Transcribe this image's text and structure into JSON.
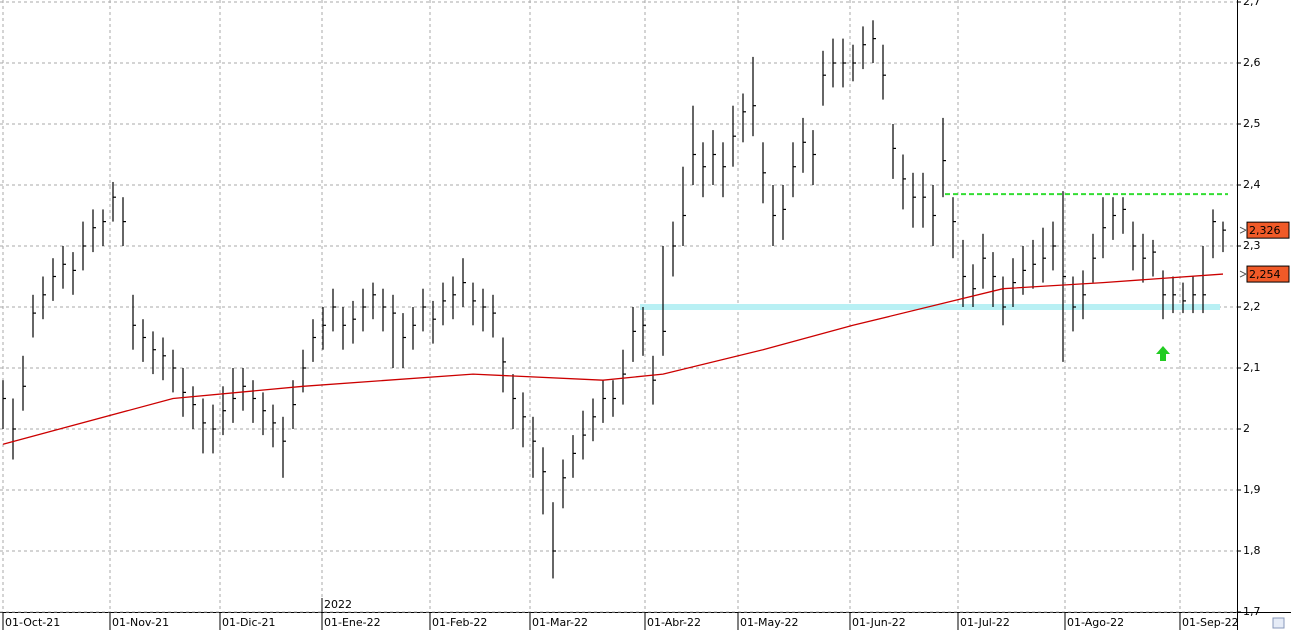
{
  "chart_data": {
    "type": "ohlc",
    "x": [
      0,
      1,
      2,
      3,
      4,
      5,
      6,
      7,
      8,
      9,
      10,
      11,
      12,
      13,
      14,
      15,
      16,
      17,
      18,
      19,
      20,
      21,
      22,
      23,
      24,
      25,
      26,
      27,
      28,
      29,
      30,
      31,
      32,
      33,
      34,
      35,
      36,
      37,
      38,
      39,
      40,
      41,
      42,
      43,
      44,
      45,
      46,
      47,
      48,
      49,
      50,
      51,
      52,
      53,
      54,
      55,
      56,
      57,
      58,
      59,
      60,
      61,
      62,
      63,
      64,
      65,
      66,
      67,
      68,
      69,
      70,
      71,
      72,
      73,
      74,
      75,
      76,
      77,
      78,
      79,
      80,
      81,
      82,
      83,
      84,
      85,
      86,
      87,
      88,
      89,
      90,
      91,
      92,
      93,
      94,
      95,
      96,
      97,
      98,
      99,
      100,
      101,
      102,
      103,
      104,
      105,
      106,
      107,
      108,
      109,
      110,
      111,
      112,
      113,
      114,
      115,
      116,
      117,
      118,
      119,
      120,
      121,
      122
    ],
    "high": [
      2.08,
      2.05,
      2.12,
      2.22,
      2.25,
      2.28,
      2.3,
      2.29,
      2.34,
      2.36,
      2.36,
      2.405,
      2.38,
      2.22,
      2.18,
      2.16,
      2.15,
      2.13,
      2.1,
      2.07,
      2.05,
      2.04,
      2.07,
      2.1,
      2.1,
      2.08,
      2.06,
      2.04,
      2.02,
      2.08,
      2.13,
      2.18,
      2.2,
      2.23,
      2.2,
      2.21,
      2.23,
      2.24,
      2.23,
      2.22,
      2.19,
      2.2,
      2.23,
      2.21,
      2.24,
      2.25,
      2.28,
      2.24,
      2.23,
      2.22,
      2.15,
      2.09,
      2.06,
      2.02,
      1.97,
      1.88,
      1.95,
      1.99,
      2.03,
      2.05,
      2.08,
      2.08,
      2.13,
      2.2,
      2.2,
      2.12,
      2.3,
      2.34,
      2.43,
      2.53,
      2.47,
      2.49,
      2.47,
      2.53,
      2.55,
      2.61,
      2.47,
      2.4,
      2.4,
      2.47,
      2.51,
      2.49,
      2.62,
      2.64,
      2.64,
      2.63,
      2.66,
      2.67,
      2.63,
      2.5,
      2.45,
      2.42,
      2.42,
      2.4,
      2.51,
      2.38,
      2.31,
      2.27,
      2.32,
      2.29,
      2.25,
      2.28,
      2.3,
      2.31,
      2.33,
      2.34,
      2.39,
      2.25,
      2.26,
      2.32,
      2.38,
      2.38,
      2.38,
      2.34,
      2.32,
      2.31,
      2.26,
      2.25,
      2.24,
      2.25,
      2.3,
      2.36,
      2.34
    ],
    "low": [
      2.0,
      1.95,
      2.03,
      2.15,
      2.18,
      2.21,
      2.23,
      2.22,
      2.26,
      2.29,
      2.3,
      2.34,
      2.3,
      2.13,
      2.11,
      2.09,
      2.08,
      2.06,
      2.02,
      2.0,
      1.96,
      1.96,
      1.99,
      2.01,
      2.03,
      2.01,
      1.99,
      1.97,
      1.92,
      2.0,
      2.06,
      2.11,
      2.13,
      2.16,
      2.13,
      2.14,
      2.16,
      2.18,
      2.16,
      2.1,
      2.1,
      2.13,
      2.16,
      2.14,
      2.17,
      2.18,
      2.2,
      2.17,
      2.16,
      2.15,
      2.06,
      2.0,
      1.97,
      1.92,
      1.86,
      1.755,
      1.87,
      1.92,
      1.95,
      1.98,
      2.01,
      2.02,
      2.04,
      2.11,
      2.12,
      2.04,
      2.12,
      2.25,
      2.3,
      2.4,
      2.38,
      2.4,
      2.38,
      2.43,
      2.47,
      2.48,
      2.37,
      2.3,
      2.31,
      2.38,
      2.42,
      2.4,
      2.53,
      2.56,
      2.56,
      2.57,
      2.59,
      2.6,
      2.54,
      2.41,
      2.36,
      2.33,
      2.33,
      2.3,
      2.38,
      2.28,
      2.2,
      2.2,
      2.23,
      2.2,
      2.17,
      2.2,
      2.22,
      2.23,
      2.24,
      2.26,
      2.11,
      2.16,
      2.18,
      2.24,
      2.28,
      2.31,
      2.32,
      2.26,
      2.24,
      2.25,
      2.18,
      2.19,
      2.19,
      2.19,
      2.19,
      2.28,
      2.29
    ],
    "close": [
      2.05,
      2.0,
      2.07,
      2.19,
      2.22,
      2.25,
      2.27,
      2.26,
      2.3,
      2.33,
      2.34,
      2.38,
      2.34,
      2.17,
      2.15,
      2.13,
      2.12,
      2.1,
      2.06,
      2.04,
      2.01,
      2.0,
      2.03,
      2.05,
      2.07,
      2.05,
      2.03,
      2.01,
      1.98,
      2.04,
      2.1,
      2.15,
      2.17,
      2.2,
      2.17,
      2.18,
      2.2,
      2.22,
      2.2,
      2.19,
      2.15,
      2.17,
      2.2,
      2.18,
      2.21,
      2.22,
      2.24,
      2.21,
      2.2,
      2.19,
      2.11,
      2.05,
      2.02,
      1.98,
      1.93,
      1.8,
      1.92,
      1.96,
      1.99,
      2.02,
      2.05,
      2.05,
      2.09,
      2.16,
      2.17,
      2.08,
      2.16,
      2.3,
      2.35,
      2.45,
      2.43,
      2.45,
      2.43,
      2.48,
      2.52,
      2.53,
      2.42,
      2.35,
      2.36,
      2.43,
      2.47,
      2.45,
      2.58,
      2.6,
      2.6,
      2.6,
      2.63,
      2.64,
      2.58,
      2.46,
      2.41,
      2.38,
      2.38,
      2.35,
      2.44,
      2.34,
      2.25,
      2.23,
      2.28,
      2.25,
      2.2,
      2.24,
      2.26,
      2.27,
      2.28,
      2.3,
      2.25,
      2.2,
      2.22,
      2.28,
      2.33,
      2.35,
      2.36,
      2.3,
      2.28,
      2.29,
      2.22,
      2.22,
      2.21,
      2.22,
      2.22,
      2.34,
      2.326
    ],
    "color": "#000000",
    "moving_average": {
      "color": "#cc0000",
      "x": [
        0,
        17,
        30,
        47,
        60,
        66,
        76,
        85,
        95,
        100,
        110,
        122
      ],
      "values": [
        1.975,
        2.05,
        2.07,
        2.09,
        2.08,
        2.09,
        2.13,
        2.17,
        2.21,
        2.23,
        2.24,
        2.254
      ]
    },
    "resistance": {
      "color": "#33dd33",
      "value": 2.385,
      "x": [
        94.2,
        122.5
      ]
    },
    "support": {
      "color": "#b8f0f4",
      "value": 2.2,
      "x": [
        63.7,
        121.7
      ]
    },
    "price_labels": [
      {
        "value": 2.326,
        "label": "2,326"
      },
      {
        "value": 2.254,
        "label": "2,254"
      }
    ],
    "year_label": "2022",
    "xlim": [
      -0.3,
      123.4
    ],
    "xticks": [
      {
        "value": 0,
        "label": "01-Oct-21"
      },
      {
        "value": 10.7,
        "label": "01-Nov-21"
      },
      {
        "value": 21.7,
        "label": "01-Dic-21"
      },
      {
        "value": 31.9,
        "label": "01-Ene-22"
      },
      {
        "value": 42.7,
        "label": "01-Feb-22"
      },
      {
        "value": 52.7,
        "label": "01-Mar-22"
      },
      {
        "value": 64.2,
        "label": "01-Abr-22"
      },
      {
        "value": 73.5,
        "label": "01-May-22"
      },
      {
        "value": 84.7,
        "label": "01-Jun-22"
      },
      {
        "value": 95.5,
        "label": "01-Jul-22"
      },
      {
        "value": 106.2,
        "label": "01-Ago-22"
      },
      {
        "value": 117.7,
        "label": "01-Sep-22"
      }
    ],
    "ylim": [
      1.7,
      2.7
    ],
    "yticks": [
      {
        "value": 1.7,
        "label": "1,7"
      },
      {
        "value": 1.8,
        "label": "1,8"
      },
      {
        "value": 1.9,
        "label": "1,9"
      },
      2,
      {
        "value": 2.1,
        "label": "2,1"
      },
      {
        "value": 2.2,
        "label": "2,2"
      },
      {
        "value": 2.3,
        "label": "2,3"
      },
      {
        "value": 2.4,
        "label": "2,4"
      },
      {
        "value": 2.5,
        "label": "2,5"
      },
      {
        "value": 2.6,
        "label": "2,6"
      },
      {
        "value": 2.7,
        "label": "2,7"
      }
    ],
    "grid": true
  }
}
